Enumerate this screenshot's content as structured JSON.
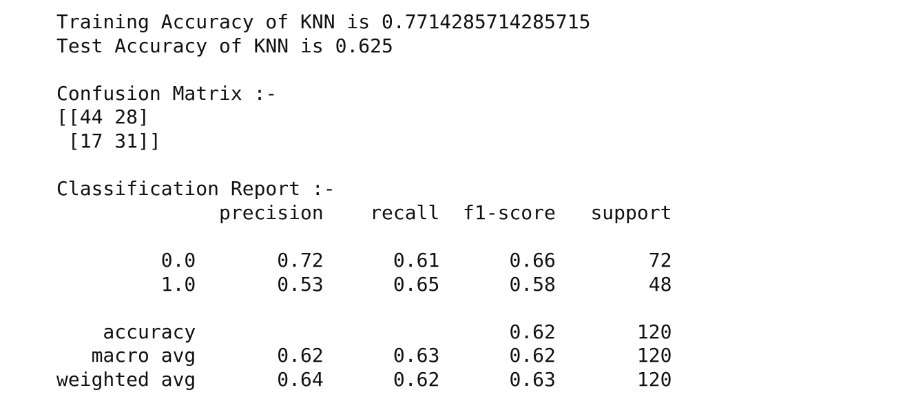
{
  "output": {
    "lines": [
      "Training Accuracy of KNN is 0.7714285714285715",
      "Test Accuracy of KNN is 0.625",
      "",
      "Confusion Matrix :-",
      "[[44 28]",
      " [17 31]]",
      "",
      "Classification Report :-",
      "              precision    recall  f1-score   support",
      "",
      "         0.0       0.72      0.61      0.66        72",
      "         1.0       0.53      0.65      0.58        48",
      "",
      "    accuracy                           0.62       120",
      "   macro avg       0.62      0.63      0.62       120",
      "weighted avg       0.64      0.62      0.63       120"
    ]
  }
}
